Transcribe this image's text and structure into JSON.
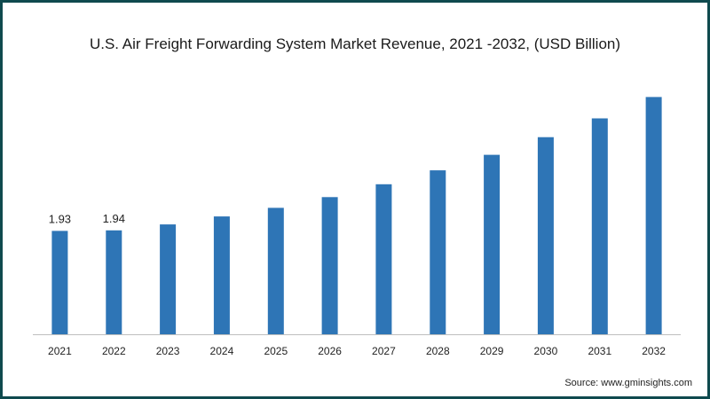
{
  "colors": {
    "bar": "#2e75b6",
    "frame": "#0f4a4e",
    "axis": "#bfbfbf"
  },
  "chart_data": {
    "type": "bar",
    "title": "U.S. Air Freight Forwarding System Market Revenue, 2021 -2032, (USD Billion)",
    "xlabel": "",
    "ylabel": "",
    "categories": [
      "2021",
      "2022",
      "2023",
      "2024",
      "2025",
      "2026",
      "2027",
      "2028",
      "2029",
      "2030",
      "2031",
      "2032"
    ],
    "values": [
      1.93,
      1.94,
      2.05,
      2.2,
      2.36,
      2.56,
      2.8,
      3.06,
      3.35,
      3.68,
      4.03,
      4.43
    ],
    "data_labels": [
      "1.93",
      "1.94",
      "",
      "",
      "",
      "",
      "",
      "",
      "",
      "",
      "",
      ""
    ],
    "ylim": [
      0,
      4.8
    ],
    "grid": false,
    "legend": "none"
  },
  "source": "Source: www.gminsights.com"
}
